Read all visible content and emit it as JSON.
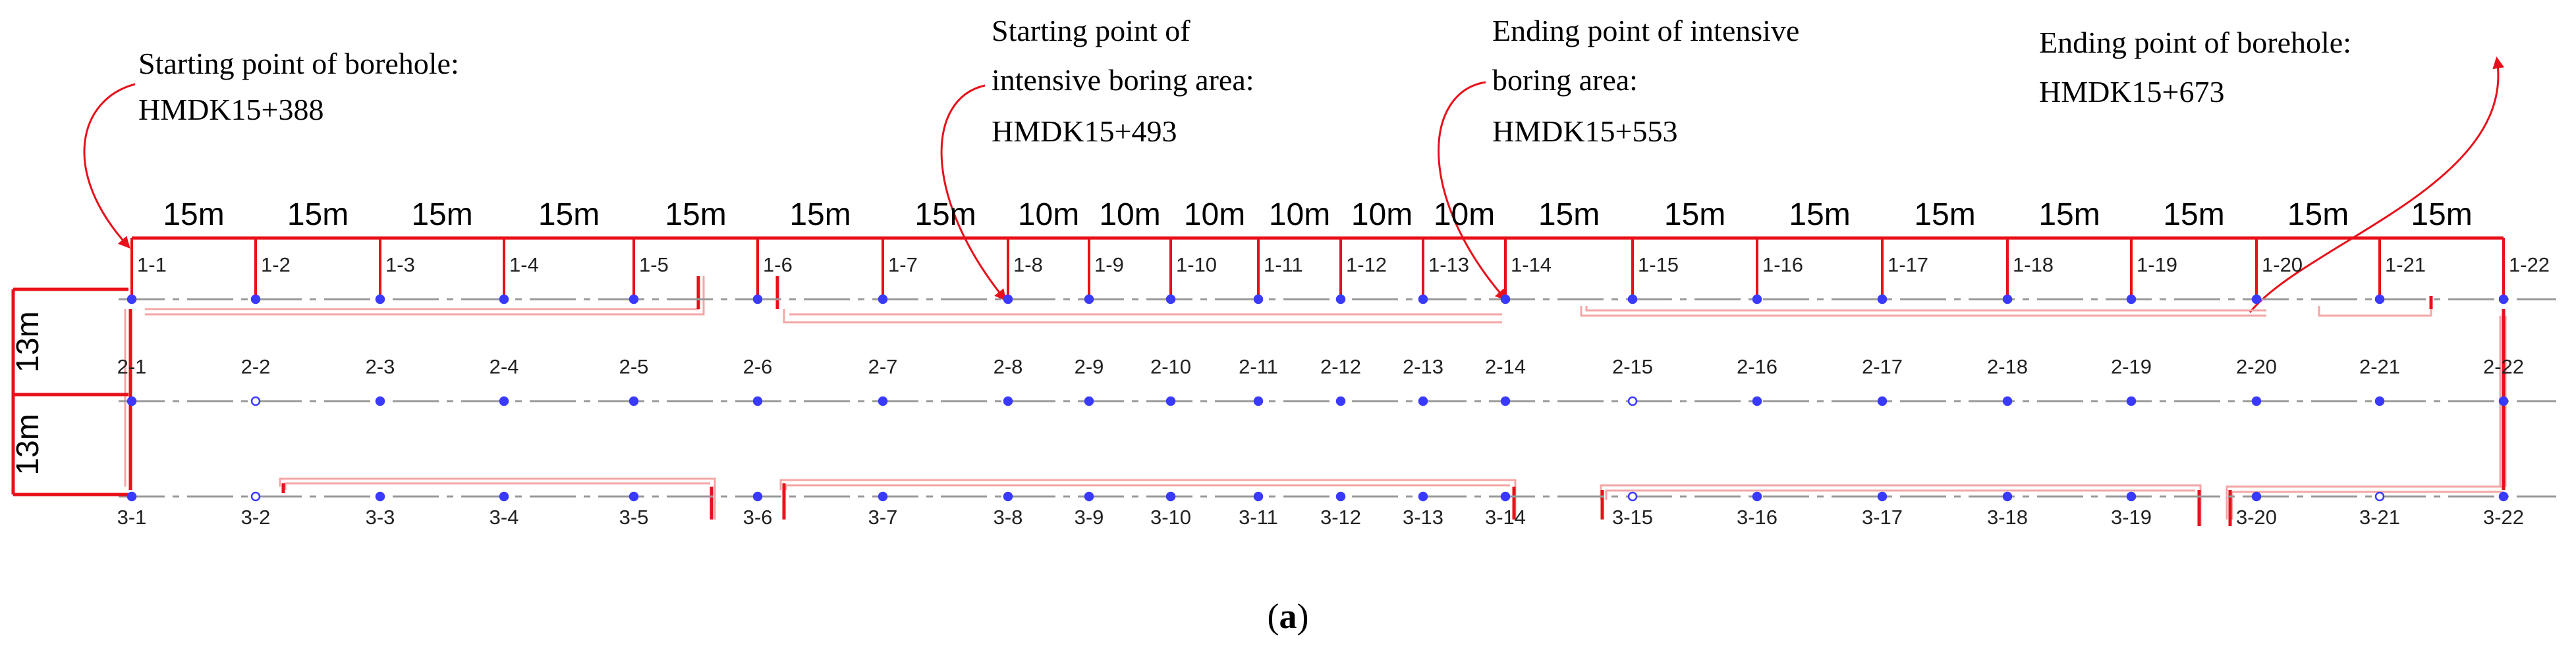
{
  "annotations": [
    {
      "title": "Starting point of borehole:",
      "value": "HMDK15+388"
    },
    {
      "title": "Starting point of",
      "title2": "intensive boring area:",
      "value": "HMDK15+493"
    },
    {
      "title": "Ending point of intensive",
      "title2": "boring area:",
      "value": "HMDK15+553"
    },
    {
      "title": "Ending point of borehole:",
      "value": "HMDK15+673"
    }
  ],
  "spacing_labels": [
    "15m",
    "15m",
    "15m",
    "15m",
    "15m",
    "15m",
    "15m",
    "10m",
    "10m",
    "10m",
    "10m",
    "10m",
    "10m",
    "15m",
    "15m",
    "15m",
    "15m",
    "15m",
    "15m",
    "15m",
    "15m"
  ],
  "row_spacing_labels": [
    "13m",
    "13m"
  ],
  "rows": [
    {
      "prefix": "1",
      "labels": [
        "1-1",
        "1-2",
        "1-3",
        "1-4",
        "1-5",
        "1-6",
        "1-7",
        "1-8",
        "1-9",
        "1-10",
        "1-11",
        "1-12",
        "1-13",
        "1-14",
        "1-15",
        "1-16",
        "1-17",
        "1-18",
        "1-19",
        "1-20",
        "1-21",
        "1-22"
      ]
    },
    {
      "prefix": "2",
      "labels": [
        "2-1",
        "2-2",
        "2-3",
        "2-4",
        "2-5",
        "2-6",
        "2-7",
        "2-8",
        "2-9",
        "2-10",
        "2-11",
        "2-12",
        "2-13",
        "2-14",
        "2-15",
        "2-16",
        "2-17",
        "2-18",
        "2-19",
        "2-20",
        "2-21",
        "2-22"
      ]
    },
    {
      "prefix": "3",
      "labels": [
        "3-1",
        "3-2",
        "3-3",
        "3-4",
        "3-5",
        "3-6",
        "3-7",
        "3-8",
        "3-9",
        "3-10",
        "3-11",
        "3-12",
        "3-13",
        "3-14",
        "3-15",
        "3-16",
        "3-17",
        "3-18",
        "3-19",
        "3-20",
        "3-21",
        "3-22"
      ]
    }
  ],
  "caption": {
    "open": "(",
    "letter": "a",
    "close": ")"
  },
  "colors": {
    "dimension": "#e8101a",
    "outline": "#f4a6a6",
    "borehole": "#3a3aff",
    "centerline": "#999999"
  }
}
